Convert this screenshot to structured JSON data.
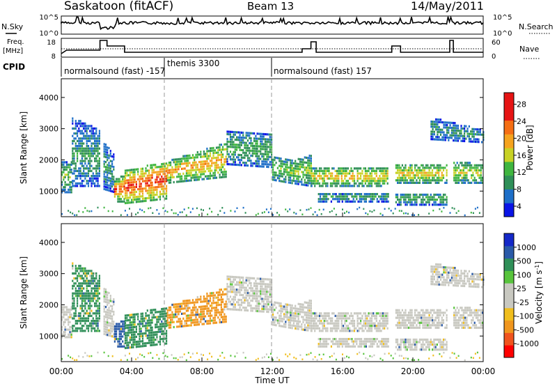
{
  "header": {
    "station": "Saskatoon (fitACF)",
    "beam": "Beam 13",
    "date": "14/May/2011"
  },
  "noise_panel": {
    "left_label": "N.Sky",
    "right_label": "N.Search",
    "left_ticks": [
      "10^5",
      "10^0"
    ],
    "right_ticks": [
      "10^5",
      "10^0"
    ]
  },
  "freq_panel": {
    "left_label_line1": "Freq.",
    "left_label_line2": "[MHz]",
    "left_ticks": [
      "18",
      "8"
    ],
    "right_label": "Nave",
    "right_ticks": [
      "60",
      "0"
    ]
  },
  "cpid_panel": {
    "label": "CPID",
    "programs": [
      "normalsound (fast) -157",
      "themis 3300",
      "normalsound (fast) 157"
    ]
  },
  "time_axis": {
    "label": "Time UT",
    "ticks": [
      "00:00",
      "04:00",
      "08:00",
      "12:00",
      "16:00",
      "20:00",
      "00:00"
    ]
  },
  "chart_data": [
    {
      "type": "heatmap",
      "title": "Power",
      "ylabel": "Slant Range [km]",
      "xlabel": "Time UT",
      "xlim": [
        0,
        24
      ],
      "ylim": [
        180,
        4600
      ],
      "yticks": [
        "4000",
        "3000",
        "2000",
        "1000"
      ],
      "yticks_values": [
        4000,
        3000,
        2000,
        1000
      ],
      "colorbar_label": "Power [dB]",
      "colorbar_ticks": [
        "28",
        "24",
        "20",
        "16",
        "12",
        "8",
        "4"
      ],
      "colorbar_ticks_values": [
        28,
        24,
        20,
        16,
        12,
        8,
        4
      ],
      "colorbar_range": [
        0,
        30
      ],
      "colorbar_colors": [
        "#0a14e6",
        "#1e6fc8",
        "#2f8f58",
        "#3fb53f",
        "#c8d225",
        "#f5a31e",
        "#f56e14",
        "#e61414",
        "#e61414"
      ]
    },
    {
      "type": "heatmap",
      "title": "Velocity",
      "ylabel": "Slant Range [km]",
      "xlabel": "Time UT",
      "xlim": [
        0,
        24
      ],
      "ylim": [
        180,
        4600
      ],
      "yticks": [
        "4000",
        "3000",
        "2000",
        "1000"
      ],
      "yticks_values": [
        4000,
        3000,
        2000,
        1000
      ],
      "colorbar_label": "Velocity [m s^-1]",
      "colorbar_ticks": [
        "1000",
        "500",
        "100",
        "25",
        "-25",
        "-100",
        "-500",
        "-1000"
      ],
      "colorbar_colors": [
        "#ff0000",
        "#f0541e",
        "#f0961e",
        "#f0be1e",
        "#c8c8c0",
        "#c8c8c0",
        "#58c43c",
        "#2f8f58",
        "#2a5aa8",
        "#1428c8"
      ]
    }
  ]
}
